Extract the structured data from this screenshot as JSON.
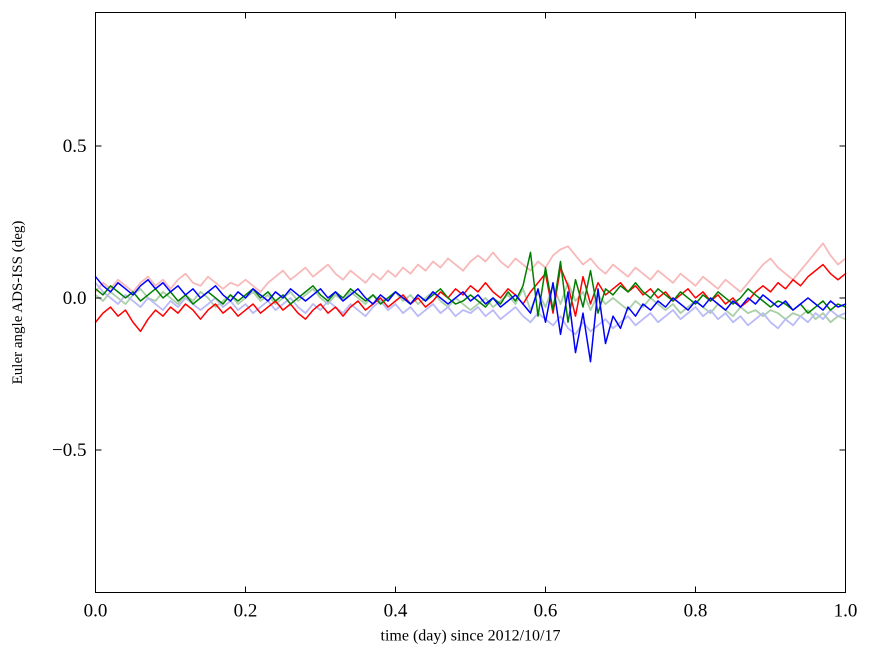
{
  "figure": {
    "background": "#ffffff",
    "axis_color": "#000000",
    "text_color": "#000000"
  },
  "chart_data": {
    "type": "line",
    "title": "",
    "xlabel": "time (day) since 2012/10/17",
    "ylabel": "Euler angle ADS-ISS (deg)",
    "xlim": [
      0.0,
      1.0
    ],
    "ylim": [
      -0.97,
      0.94
    ],
    "xticks": [
      0.0,
      0.2,
      0.4,
      0.6,
      0.8,
      1.0
    ],
    "yticks": [
      -0.5,
      0.0,
      0.5
    ],
    "grid": false,
    "legend": "none",
    "x_start": 0.0,
    "x_end": 1.0,
    "series": [
      {
        "name": "light-red",
        "color": "#f7b9b9",
        "width": 1.8,
        "values": [
          0.02,
          0.05,
          0.03,
          0.06,
          0.04,
          0.02,
          0.05,
          0.07,
          0.04,
          0.06,
          0.03,
          0.06,
          0.08,
          0.05,
          0.04,
          0.07,
          0.05,
          0.03,
          0.05,
          0.04,
          0.06,
          0.04,
          0.02,
          0.05,
          0.07,
          0.09,
          0.06,
          0.08,
          0.1,
          0.07,
          0.09,
          0.11,
          0.08,
          0.06,
          0.09,
          0.07,
          0.05,
          0.08,
          0.06,
          0.09,
          0.07,
          0.1,
          0.08,
          0.11,
          0.09,
          0.12,
          0.1,
          0.13,
          0.11,
          0.09,
          0.12,
          0.14,
          0.12,
          0.15,
          0.12,
          0.1,
          0.13,
          0.11,
          0.09,
          0.12,
          0.1,
          0.14,
          0.16,
          0.17,
          0.14,
          0.11,
          0.13,
          0.1,
          0.08,
          0.11,
          0.09,
          0.07,
          0.1,
          0.08,
          0.06,
          0.09,
          0.07,
          0.05,
          0.08,
          0.06,
          0.04,
          0.07,
          0.05,
          0.03,
          0.06,
          0.04,
          0.02,
          0.05,
          0.08,
          0.11,
          0.13,
          0.1,
          0.08,
          0.06,
          0.09,
          0.12,
          0.15,
          0.18,
          0.14,
          0.11,
          0.13
        ]
      },
      {
        "name": "light-green",
        "color": "#a9cfa9",
        "width": 1.8,
        "values": [
          0.01,
          -0.01,
          0.02,
          0.0,
          -0.02,
          0.01,
          0.03,
          0.0,
          -0.01,
          0.02,
          0.0,
          -0.02,
          0.01,
          -0.01,
          0.02,
          0.0,
          -0.03,
          -0.01,
          0.01,
          -0.02,
          0.0,
          0.02,
          -0.01,
          0.01,
          -0.02,
          0.0,
          0.02,
          -0.01,
          0.01,
          0.03,
          0.0,
          -0.02,
          0.01,
          -0.01,
          0.02,
          0.0,
          -0.02,
          0.01,
          -0.01,
          0.0,
          0.02,
          -0.01,
          0.01,
          -0.02,
          0.0,
          0.02,
          -0.01,
          -0.03,
          0.0,
          -0.02,
          -0.04,
          -0.02,
          0.0,
          -0.03,
          -0.01,
          0.01,
          -0.02,
          0.03,
          -0.04,
          0.02,
          -0.03,
          0.04,
          -0.02,
          0.05,
          -0.01,
          0.02,
          -0.04,
          0.01,
          -0.02,
          0.0,
          -0.02,
          -0.04,
          -0.01,
          -0.03,
          0.0,
          -0.02,
          -0.04,
          -0.02,
          -0.05,
          -0.03,
          -0.01,
          -0.03,
          -0.05,
          -0.02,
          -0.04,
          -0.06,
          -0.03,
          -0.05,
          -0.04,
          -0.06,
          -0.04,
          -0.05,
          -0.07,
          -0.05,
          -0.06,
          -0.04,
          -0.07,
          -0.05,
          -0.08,
          -0.06,
          -0.07
        ]
      },
      {
        "name": "light-blue",
        "color": "#babaf7",
        "width": 1.8,
        "values": [
          0.05,
          0.02,
          0.0,
          -0.02,
          0.01,
          -0.01,
          -0.03,
          0.0,
          -0.02,
          -0.04,
          -0.01,
          -0.03,
          0.0,
          -0.02,
          -0.04,
          -0.02,
          0.0,
          -0.03,
          -0.01,
          -0.04,
          -0.02,
          -0.05,
          -0.03,
          -0.01,
          -0.04,
          -0.02,
          0.0,
          -0.03,
          -0.05,
          -0.02,
          -0.04,
          -0.01,
          -0.03,
          -0.05,
          -0.02,
          -0.04,
          -0.06,
          -0.03,
          -0.01,
          -0.04,
          -0.02,
          -0.05,
          -0.03,
          -0.06,
          -0.04,
          -0.02,
          -0.05,
          -0.03,
          -0.06,
          -0.04,
          -0.05,
          -0.03,
          -0.06,
          -0.04,
          -0.07,
          -0.05,
          -0.03,
          -0.06,
          -0.08,
          -0.05,
          -0.07,
          -0.09,
          -0.06,
          -0.1,
          -0.12,
          -0.08,
          -0.11,
          -0.09,
          -0.07,
          -0.1,
          -0.08,
          -0.06,
          -0.09,
          -0.07,
          -0.05,
          -0.08,
          -0.06,
          -0.04,
          -0.07,
          -0.05,
          -0.03,
          -0.06,
          -0.04,
          -0.07,
          -0.05,
          -0.08,
          -0.06,
          -0.09,
          -0.07,
          -0.05,
          -0.08,
          -0.1,
          -0.07,
          -0.09,
          -0.06,
          -0.08,
          -0.05,
          -0.07,
          -0.04,
          -0.06,
          -0.05
        ]
      },
      {
        "name": "red",
        "color": "#ff0000",
        "width": 1.5,
        "values": [
          -0.08,
          -0.05,
          -0.03,
          -0.06,
          -0.04,
          -0.08,
          -0.11,
          -0.07,
          -0.04,
          -0.06,
          -0.03,
          -0.05,
          -0.02,
          -0.04,
          -0.07,
          -0.04,
          -0.02,
          -0.05,
          -0.03,
          -0.06,
          -0.04,
          -0.02,
          -0.05,
          -0.03,
          -0.01,
          -0.04,
          -0.02,
          -0.05,
          -0.07,
          -0.04,
          -0.02,
          -0.05,
          -0.03,
          -0.06,
          -0.03,
          -0.01,
          -0.04,
          -0.02,
          0.0,
          -0.03,
          -0.01,
          0.01,
          -0.02,
          0.0,
          -0.03,
          -0.01,
          0.02,
          0.0,
          0.03,
          0.01,
          0.04,
          0.02,
          0.05,
          0.02,
          0.0,
          0.03,
          0.01,
          -0.02,
          0.02,
          0.05,
          0.08,
          -0.05,
          0.1,
          0.04,
          -0.06,
          0.07,
          -0.02,
          0.05,
          0.01,
          0.03,
          0.05,
          0.02,
          0.04,
          0.01,
          0.03,
          0.0,
          0.02,
          -0.01,
          0.01,
          0.03,
          0.0,
          0.02,
          -0.01,
          0.01,
          -0.02,
          0.0,
          -0.03,
          -0.01,
          0.02,
          0.04,
          0.02,
          0.05,
          0.03,
          0.06,
          0.04,
          0.07,
          0.09,
          0.11,
          0.08,
          0.06,
          0.08
        ]
      },
      {
        "name": "green",
        "color": "#007f00",
        "width": 1.5,
        "values": [
          0.03,
          0.01,
          0.04,
          0.02,
          0.0,
          0.02,
          -0.01,
          0.01,
          0.03,
          0.0,
          0.02,
          -0.01,
          0.01,
          -0.02,
          0.0,
          0.02,
          0.0,
          -0.02,
          0.01,
          -0.01,
          0.01,
          0.03,
          0.0,
          0.02,
          -0.01,
          0.01,
          -0.02,
          0.0,
          0.02,
          0.04,
          0.01,
          -0.01,
          0.02,
          0.0,
          0.03,
          0.01,
          -0.01,
          0.01,
          -0.02,
          0.0,
          0.02,
          0.0,
          -0.02,
          0.01,
          -0.01,
          0.01,
          0.03,
          0.0,
          -0.02,
          -0.01,
          0.01,
          -0.01,
          -0.03,
          0.0,
          -0.02,
          0.02,
          -0.01,
          0.04,
          0.15,
          -0.06,
          0.1,
          -0.04,
          0.12,
          -0.08,
          0.06,
          -0.03,
          0.09,
          -0.05,
          0.03,
          0.01,
          0.04,
          0.02,
          0.05,
          0.02,
          0.0,
          0.03,
          0.01,
          -0.01,
          0.02,
          0.0,
          -0.02,
          0.01,
          -0.01,
          0.02,
          0.0,
          -0.02,
          0.0,
          0.03,
          0.01,
          -0.01,
          -0.03,
          -0.01,
          -0.02,
          -0.04,
          -0.02,
          -0.05,
          -0.03,
          -0.01,
          -0.04,
          -0.02,
          -0.03
        ]
      },
      {
        "name": "blue",
        "color": "#0000ff",
        "width": 1.5,
        "values": [
          0.07,
          0.04,
          0.02,
          0.05,
          0.03,
          0.01,
          0.04,
          0.06,
          0.03,
          0.05,
          0.02,
          0.04,
          0.01,
          0.03,
          0.0,
          0.02,
          0.04,
          0.01,
          -0.01,
          0.02,
          0.0,
          0.03,
          0.01,
          -0.01,
          0.02,
          0.0,
          0.03,
          0.01,
          -0.01,
          0.01,
          0.03,
          0.0,
          0.02,
          -0.01,
          0.01,
          0.03,
          0.0,
          -0.02,
          0.01,
          -0.01,
          0.02,
          0.0,
          -0.02,
          0.01,
          -0.01,
          0.02,
          0.0,
          -0.02,
          0.0,
          0.02,
          -0.01,
          0.01,
          -0.02,
          0.0,
          -0.03,
          -0.01,
          0.01,
          -0.02,
          -0.05,
          0.03,
          -0.08,
          0.05,
          -0.12,
          0.02,
          -0.18,
          -0.05,
          -0.21,
          0.03,
          -0.15,
          -0.06,
          -0.1,
          -0.03,
          -0.06,
          -0.02,
          -0.04,
          -0.01,
          -0.03,
          0.0,
          -0.02,
          -0.04,
          -0.01,
          -0.03,
          0.0,
          -0.02,
          -0.04,
          -0.01,
          -0.03,
          0.0,
          -0.02,
          0.01,
          -0.01,
          -0.03,
          -0.01,
          -0.04,
          -0.02,
          0.0,
          -0.02,
          -0.04,
          -0.01,
          -0.03,
          -0.02
        ]
      }
    ]
  }
}
